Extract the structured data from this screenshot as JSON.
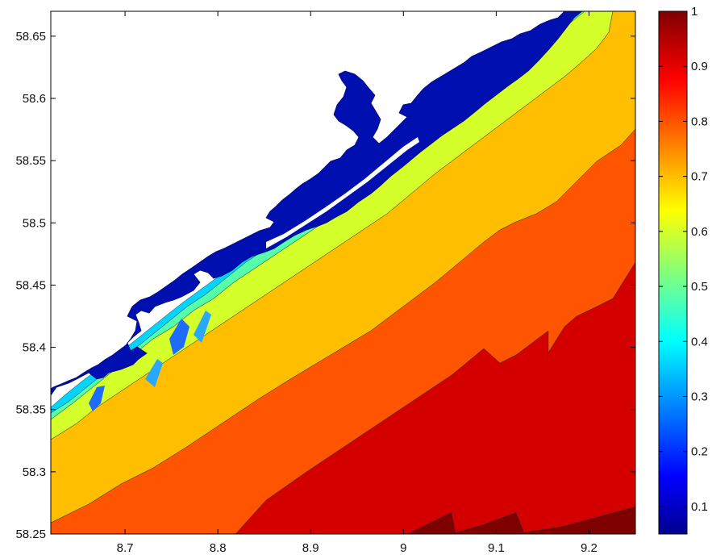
{
  "chart_data": {
    "type": "heatmap",
    "subtype": "filled-contour-map",
    "title": "",
    "xlabel": "",
    "ylabel": "",
    "xlim": [
      8.62,
      9.25
    ],
    "ylim": [
      58.25,
      58.67
    ],
    "x_ticks": [
      "8.7",
      "8.8",
      "8.9",
      "9",
      "9.1",
      "9.2"
    ],
    "x_tick_values": [
      8.7,
      8.8,
      8.9,
      9.0,
      9.1,
      9.2
    ],
    "y_ticks": [
      "58.25",
      "58.3",
      "58.35",
      "58.4",
      "58.45",
      "58.5",
      "58.55",
      "58.6",
      "58.65"
    ],
    "y_tick_values": [
      58.25,
      58.3,
      58.35,
      58.4,
      58.45,
      58.5,
      58.55,
      58.6,
      58.65
    ],
    "colormap": "jet",
    "colorbar": {
      "range": [
        0.05,
        1
      ],
      "ticks": [
        "0.1",
        "0.2",
        "0.3",
        "0.4",
        "0.5",
        "0.6",
        "0.7",
        "0.8",
        "0.9",
        "1"
      ],
      "tick_values": [
        0.1,
        0.2,
        0.3,
        0.4,
        0.5,
        0.6,
        0.7,
        0.8,
        0.9,
        1.0
      ],
      "placement": "right"
    },
    "contour_bands": [
      {
        "value": 1.0,
        "color": "#7f0000",
        "x_at_bottom": [
          9.01,
          9.25
        ]
      },
      {
        "value": 0.9,
        "color": "#d40000",
        "x_at_bottom": [
          8.79,
          9.01
        ]
      },
      {
        "value": 0.8,
        "color": "#ff5500",
        "x_at_bottom": [
          8.62,
          8.79
        ]
      },
      {
        "value": 0.7,
        "color": "#ffbf00",
        "y_at_left": [
          58.26,
          58.29
        ]
      },
      {
        "value": 0.6,
        "color": "#d4ff2a",
        "y_at_left": [
          58.29,
          58.315
        ]
      },
      {
        "value": 0.5,
        "color": "#55ffaa",
        "y_at_left": [
          58.315,
          58.325
        ]
      },
      {
        "value": 0.4,
        "color": "#00d4ff",
        "y_at_left": [
          58.325,
          58.33
        ]
      },
      {
        "value": 0.1,
        "color": "#0010b0"
      }
    ],
    "grid": false,
    "legend": "none"
  }
}
